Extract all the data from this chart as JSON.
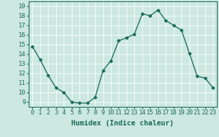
{
  "x": [
    0,
    1,
    2,
    3,
    4,
    5,
    6,
    7,
    8,
    9,
    10,
    11,
    12,
    13,
    14,
    15,
    16,
    17,
    18,
    19,
    20,
    21,
    22,
    23
  ],
  "y": [
    14.8,
    13.4,
    11.8,
    10.5,
    10.0,
    9.0,
    8.9,
    8.9,
    9.5,
    12.3,
    13.3,
    15.4,
    15.7,
    16.1,
    18.2,
    18.0,
    18.6,
    17.5,
    17.0,
    16.5,
    14.1,
    11.7,
    11.5,
    10.5
  ],
  "line_color": "#1a6b5a",
  "marker": "D",
  "markersize": 2.5,
  "linewidth": 1.0,
  "xlabel": "Humidex (Indice chaleur)",
  "xlim": [
    -0.5,
    23.5
  ],
  "ylim": [
    8.5,
    19.5
  ],
  "yticks": [
    9,
    10,
    11,
    12,
    13,
    14,
    15,
    16,
    17,
    18,
    19
  ],
  "xticks": [
    0,
    1,
    2,
    3,
    4,
    5,
    6,
    7,
    8,
    9,
    10,
    11,
    12,
    13,
    14,
    15,
    16,
    17,
    18,
    19,
    20,
    21,
    22,
    23
  ],
  "bg_color": "#cce8e0",
  "grid_color": "#b0d8d0",
  "tick_label_fontsize": 6.5,
  "xlabel_fontsize": 7.5
}
